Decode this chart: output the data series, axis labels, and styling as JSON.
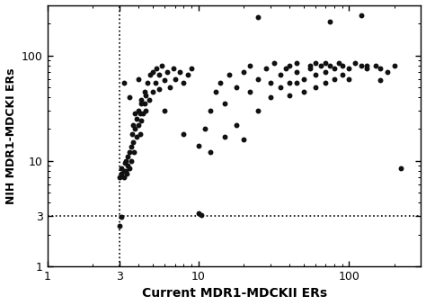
{
  "xlabel": "Current MDR1-MDCKII ERs",
  "ylabel": "NIH MDR1-MDCKI ERs",
  "xlim": [
    1,
    300
  ],
  "ylim": [
    1,
    300
  ],
  "vline_x": 3,
  "hline_y": 3,
  "dot_color": "#111111",
  "dot_size": 18,
  "background_color": "#ffffff",
  "xlabel_fontsize": 10,
  "ylabel_fontsize": 9,
  "tick_fontsize": 9,
  "scatter_xy": [
    [
      3.0,
      2.4
    ],
    [
      3.1,
      2.95
    ],
    [
      3.0,
      7.0
    ],
    [
      3.1,
      7.5
    ],
    [
      3.1,
      8.5
    ],
    [
      3.2,
      7.0
    ],
    [
      3.2,
      8.0
    ],
    [
      3.25,
      9.5
    ],
    [
      3.3,
      8.0
    ],
    [
      3.3,
      10.0
    ],
    [
      3.35,
      7.5
    ],
    [
      3.4,
      11.0
    ],
    [
      3.4,
      9.0
    ],
    [
      3.5,
      8.5
    ],
    [
      3.5,
      12.0
    ],
    [
      3.6,
      10.0
    ],
    [
      3.6,
      13.5
    ],
    [
      3.65,
      18.0
    ],
    [
      3.7,
      15.0
    ],
    [
      3.7,
      22.0
    ],
    [
      3.75,
      12.0
    ],
    [
      3.8,
      20.0
    ],
    [
      3.8,
      28.0
    ],
    [
      3.9,
      17.0
    ],
    [
      3.9,
      25.0
    ],
    [
      4.0,
      22.0
    ],
    [
      4.0,
      30.0
    ],
    [
      4.1,
      18.0
    ],
    [
      4.1,
      28.0
    ],
    [
      4.15,
      35.0
    ],
    [
      4.2,
      24.0
    ],
    [
      4.2,
      38.0
    ],
    [
      4.3,
      28.0
    ],
    [
      4.4,
      35.0
    ],
    [
      4.4,
      45.0
    ],
    [
      4.5,
      30.0
    ],
    [
      4.5,
      42.0
    ],
    [
      4.6,
      55.0
    ],
    [
      4.7,
      38.0
    ],
    [
      4.8,
      65.0
    ],
    [
      5.0,
      45.0
    ],
    [
      5.0,
      70.0
    ],
    [
      5.2,
      55.0
    ],
    [
      5.3,
      75.0
    ],
    [
      5.5,
      48.0
    ],
    [
      5.5,
      65.0
    ],
    [
      5.7,
      80.0
    ],
    [
      6.0,
      58.0
    ],
    [
      6.2,
      70.0
    ],
    [
      6.5,
      50.0
    ],
    [
      6.8,
      75.0
    ],
    [
      7.0,
      60.0
    ],
    [
      7.5,
      70.0
    ],
    [
      8.0,
      55.0
    ],
    [
      8.5,
      65.0
    ],
    [
      9.0,
      75.0
    ],
    [
      10.0,
      3.2
    ],
    [
      10.5,
      3.05
    ],
    [
      11.0,
      20.0
    ],
    [
      12.0,
      30.0
    ],
    [
      13.0,
      45.0
    ],
    [
      14.0,
      55.0
    ],
    [
      15.0,
      35.0
    ],
    [
      16.0,
      65.0
    ],
    [
      18.0,
      50.0
    ],
    [
      20.0,
      70.0
    ],
    [
      22.0,
      45.0
    ],
    [
      22.0,
      80.0
    ],
    [
      25.0,
      60.0
    ],
    [
      28.0,
      75.0
    ],
    [
      30.0,
      55.0
    ],
    [
      32.0,
      85.0
    ],
    [
      35.0,
      65.0
    ],
    [
      38.0,
      75.0
    ],
    [
      40.0,
      80.0
    ],
    [
      40.0,
      55.0
    ],
    [
      45.0,
      70.0
    ],
    [
      45.0,
      85.0
    ],
    [
      50.0,
      60.0
    ],
    [
      55.0,
      80.0
    ],
    [
      55.0,
      75.0
    ],
    [
      60.0,
      85.0
    ],
    [
      60.0,
      65.0
    ],
    [
      65.0,
      80.0
    ],
    [
      70.0,
      70.0
    ],
    [
      70.0,
      85.0
    ],
    [
      75.0,
      80.0
    ],
    [
      80.0,
      75.0
    ],
    [
      85.0,
      85.0
    ],
    [
      90.0,
      80.0
    ],
    [
      100.0,
      75.0
    ],
    [
      110.0,
      85.0
    ],
    [
      120.0,
      80.0
    ],
    [
      130.0,
      75.0
    ],
    [
      150.0,
      80.0
    ],
    [
      160.0,
      75.0
    ],
    [
      180.0,
      70.0
    ],
    [
      200.0,
      80.0
    ],
    [
      220.0,
      8.5
    ],
    [
      25.0,
      230.0
    ],
    [
      75.0,
      210.0
    ],
    [
      120.0,
      240.0
    ],
    [
      3.2,
      55.0
    ],
    [
      3.5,
      40.0
    ],
    [
      4.0,
      60.0
    ],
    [
      6.0,
      30.0
    ],
    [
      8.0,
      18.0
    ],
    [
      10.0,
      14.0
    ],
    [
      12.0,
      12.0
    ],
    [
      15.0,
      17.0
    ],
    [
      18.0,
      22.0
    ],
    [
      20.0,
      16.0
    ],
    [
      25.0,
      30.0
    ],
    [
      30.0,
      40.0
    ],
    [
      35.0,
      50.0
    ],
    [
      40.0,
      42.0
    ],
    [
      45.0,
      55.0
    ],
    [
      50.0,
      45.0
    ],
    [
      60.0,
      50.0
    ],
    [
      70.0,
      55.0
    ],
    [
      80.0,
      60.0
    ],
    [
      90.0,
      65.0
    ],
    [
      100.0,
      60.0
    ],
    [
      130.0,
      80.0
    ],
    [
      160.0,
      58.0
    ]
  ]
}
